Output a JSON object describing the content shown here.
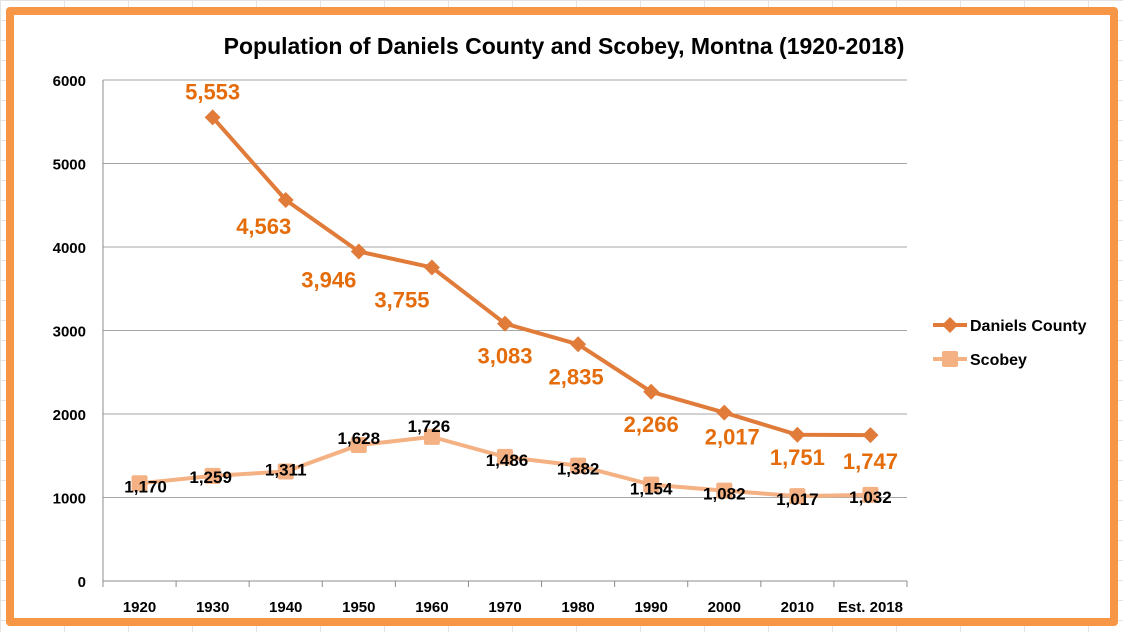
{
  "chart_data": {
    "type": "line",
    "title": "Population of Daniels County and Scobey, Montna (1920-2018)",
    "categories": [
      "1920",
      "1930",
      "1940",
      "1950",
      "1960",
      "1970",
      "1980",
      "1990",
      "2000",
      "2010",
      "Est. 2018"
    ],
    "ylim": [
      0,
      6000
    ],
    "yticks": [
      0,
      1000,
      2000,
      3000,
      4000,
      5000,
      6000
    ],
    "grid": true,
    "legend_position": "right",
    "series": [
      {
        "name": "Daniels County",
        "color": "#e07b39",
        "label_color": "#e46c0a",
        "marker": "diamond",
        "values": [
          null,
          5553,
          4563,
          3946,
          3755,
          3083,
          2835,
          2266,
          2017,
          1751,
          1747
        ],
        "labels": [
          "",
          "5,553",
          "4,563",
          "3,946",
          "3,755",
          "3,083",
          "2,835",
          "2,266",
          "2,017",
          "1,751",
          "1,747"
        ]
      },
      {
        "name": "Scobey",
        "color": "#f4b183",
        "label_color": "#000000",
        "marker": "square",
        "values": [
          1170,
          1259,
          1311,
          1628,
          1726,
          1486,
          1382,
          1154,
          1082,
          1017,
          1032
        ],
        "labels": [
          "1,170",
          "1,259",
          "1,311",
          "1,628",
          "1,726",
          "1,486",
          "1,382",
          "1,154",
          "1,082",
          "1,017",
          "1,032"
        ]
      }
    ]
  }
}
